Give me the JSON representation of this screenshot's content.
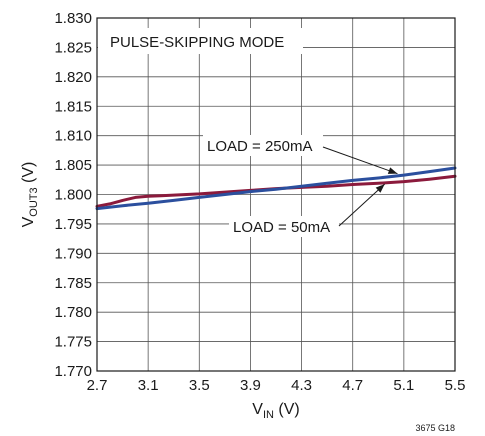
{
  "chart_data": {
    "type": "line",
    "xlabel": {
      "main": "V",
      "sub": "IN",
      "unit": " (V)"
    },
    "ylabel": {
      "main": "V",
      "sub": "OUT3",
      "unit": " (V)"
    },
    "xlim": [
      2.7,
      5.5
    ],
    "ylim": [
      1.77,
      1.83
    ],
    "x_ticks": [
      "2.7",
      "3.1",
      "3.5",
      "3.9",
      "4.3",
      "4.7",
      "5.1",
      "5.5"
    ],
    "y_ticks": [
      "1.770",
      "1.775",
      "1.780",
      "1.785",
      "1.790",
      "1.795",
      "1.800",
      "1.805",
      "1.810",
      "1.815",
      "1.820",
      "1.825",
      "1.830"
    ],
    "grid": true,
    "series": [
      {
        "name": "LOAD = 50mA",
        "color": "#8b1a3c",
        "x": [
          2.7,
          2.8,
          2.9,
          3.0,
          3.1,
          3.2,
          3.3,
          3.5,
          3.7,
          3.9,
          4.1,
          4.3,
          4.5,
          4.7,
          4.9,
          5.1,
          5.3,
          5.5
        ],
        "y": [
          1.798,
          1.7984,
          1.799,
          1.7995,
          1.7997,
          1.7998,
          1.7999,
          1.8001,
          1.8004,
          1.8007,
          1.801,
          1.8012,
          1.8014,
          1.8017,
          1.8019,
          1.8022,
          1.8026,
          1.8031
        ]
      },
      {
        "name": "LOAD = 250mA",
        "color": "#2b4f9e",
        "x": [
          2.7,
          2.9,
          3.1,
          3.3,
          3.5,
          3.7,
          3.9,
          4.1,
          4.3,
          4.5,
          4.7,
          4.9,
          5.1,
          5.3,
          5.5
        ],
        "y": [
          1.7976,
          1.7981,
          1.7985,
          1.799,
          1.7995,
          1.8,
          1.8005,
          1.8009,
          1.8014,
          1.8019,
          1.8024,
          1.8028,
          1.8033,
          1.8039,
          1.8045
        ]
      }
    ],
    "mode_label": "PULSE-SKIPPING MODE",
    "annotations": [
      {
        "text": "LOAD = 250mA",
        "target_x": 5.05,
        "target_y": 1.8032
      },
      {
        "text": "LOAD = 50mA",
        "target_x": 4.95,
        "target_y": 1.8021
      }
    ],
    "figure_id": "3675 G18"
  }
}
